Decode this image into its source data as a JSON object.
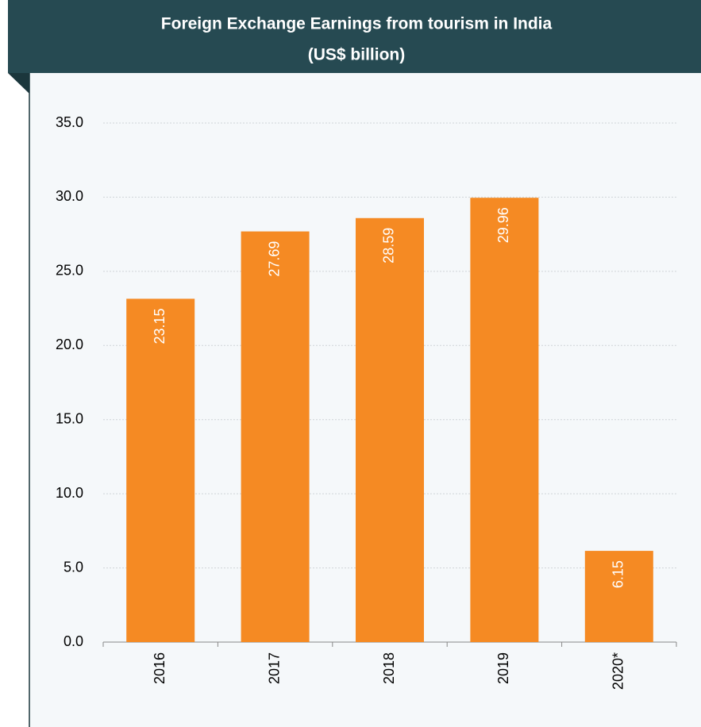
{
  "chart_data": {
    "type": "bar",
    "title": "Foreign Exchange Earnings from tourism in India",
    "subtitle": "(US$ billion)",
    "categories": [
      "2016",
      "2017",
      "2018",
      "2019",
      "2020*"
    ],
    "values": [
      23.15,
      27.69,
      28.59,
      29.96,
      6.15
    ],
    "color": "#f58a23",
    "ylim": [
      0,
      35
    ],
    "yticks": [
      {
        "value": 0,
        "label": "0.0"
      },
      {
        "value": 5,
        "label": "5.0"
      },
      {
        "value": 10,
        "label": "10.0"
      },
      {
        "value": 15,
        "label": "15.0"
      },
      {
        "value": 20,
        "label": "20.0"
      },
      {
        "value": 25,
        "label": "25.0"
      },
      {
        "value": 30,
        "label": "30.0"
      },
      {
        "value": 35,
        "label": "35.0"
      }
    ],
    "grid": true
  }
}
